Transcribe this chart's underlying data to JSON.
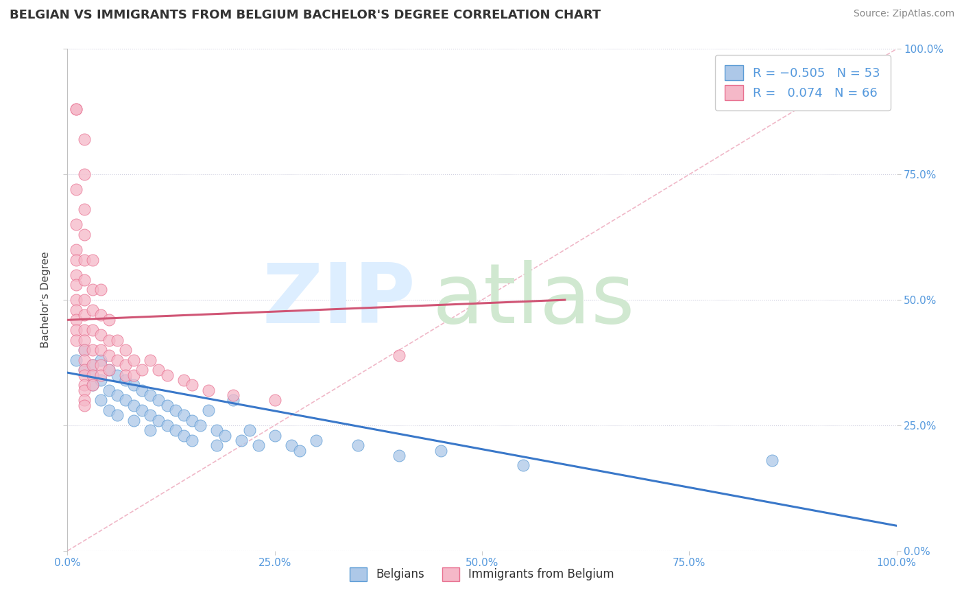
{
  "title": "BELGIAN VS IMMIGRANTS FROM BELGIUM BACHELOR'S DEGREE CORRELATION CHART",
  "source": "Source: ZipAtlas.com",
  "ylabel": "Bachelor's Degree",
  "xlim": [
    0,
    1
  ],
  "ylim": [
    0,
    1
  ],
  "ytick_labels": [
    "0.0%",
    "25.0%",
    "50.0%",
    "75.0%",
    "100.0%"
  ],
  "ytick_values": [
    0,
    0.25,
    0.5,
    0.75,
    1.0
  ],
  "blue_R": -0.505,
  "blue_N": 53,
  "pink_R": 0.074,
  "pink_N": 66,
  "blue_color": "#adc8e8",
  "blue_edge_color": "#5b9bd5",
  "blue_line_color": "#3a78c9",
  "pink_color": "#f5b8c8",
  "pink_edge_color": "#e87090",
  "pink_line_color": "#d05575",
  "diag_color": "#f0b8c8",
  "blue_scatter_x": [
    0.01,
    0.02,
    0.02,
    0.03,
    0.03,
    0.03,
    0.04,
    0.04,
    0.04,
    0.05,
    0.05,
    0.05,
    0.06,
    0.06,
    0.06,
    0.07,
    0.07,
    0.08,
    0.08,
    0.08,
    0.09,
    0.09,
    0.1,
    0.1,
    0.1,
    0.11,
    0.11,
    0.12,
    0.12,
    0.13,
    0.13,
    0.14,
    0.14,
    0.15,
    0.15,
    0.16,
    0.17,
    0.18,
    0.18,
    0.19,
    0.2,
    0.21,
    0.22,
    0.23,
    0.25,
    0.27,
    0.28,
    0.3,
    0.35,
    0.4,
    0.45,
    0.55,
    0.85
  ],
  "blue_scatter_y": [
    0.38,
    0.4,
    0.36,
    0.37,
    0.35,
    0.33,
    0.38,
    0.34,
    0.3,
    0.36,
    0.32,
    0.28,
    0.35,
    0.31,
    0.27,
    0.34,
    0.3,
    0.33,
    0.29,
    0.26,
    0.32,
    0.28,
    0.31,
    0.27,
    0.24,
    0.3,
    0.26,
    0.29,
    0.25,
    0.28,
    0.24,
    0.27,
    0.23,
    0.26,
    0.22,
    0.25,
    0.28,
    0.24,
    0.21,
    0.23,
    0.3,
    0.22,
    0.24,
    0.21,
    0.23,
    0.21,
    0.2,
    0.22,
    0.21,
    0.19,
    0.2,
    0.17,
    0.18
  ],
  "pink_scatter_x": [
    0.01,
    0.01,
    0.01,
    0.01,
    0.01,
    0.01,
    0.01,
    0.01,
    0.01,
    0.01,
    0.01,
    0.01,
    0.01,
    0.02,
    0.02,
    0.02,
    0.02,
    0.02,
    0.02,
    0.02,
    0.02,
    0.02,
    0.02,
    0.02,
    0.02,
    0.02,
    0.02,
    0.02,
    0.02,
    0.02,
    0.02,
    0.03,
    0.03,
    0.03,
    0.03,
    0.03,
    0.03,
    0.03,
    0.03,
    0.04,
    0.04,
    0.04,
    0.04,
    0.04,
    0.04,
    0.05,
    0.05,
    0.05,
    0.05,
    0.06,
    0.06,
    0.07,
    0.07,
    0.07,
    0.08,
    0.08,
    0.09,
    0.1,
    0.11,
    0.12,
    0.14,
    0.15,
    0.17,
    0.2,
    0.25,
    0.4
  ],
  "pink_scatter_y": [
    0.88,
    0.88,
    0.72,
    0.65,
    0.6,
    0.58,
    0.55,
    0.53,
    0.5,
    0.48,
    0.46,
    0.44,
    0.42,
    0.82,
    0.75,
    0.68,
    0.63,
    0.58,
    0.54,
    0.5,
    0.47,
    0.44,
    0.42,
    0.4,
    0.38,
    0.36,
    0.35,
    0.33,
    0.32,
    0.3,
    0.29,
    0.58,
    0.52,
    0.48,
    0.44,
    0.4,
    0.37,
    0.35,
    0.33,
    0.52,
    0.47,
    0.43,
    0.4,
    0.37,
    0.35,
    0.46,
    0.42,
    0.39,
    0.36,
    0.42,
    0.38,
    0.4,
    0.37,
    0.35,
    0.38,
    0.35,
    0.36,
    0.38,
    0.36,
    0.35,
    0.34,
    0.33,
    0.32,
    0.31,
    0.3,
    0.39
  ],
  "title_fontsize": 13,
  "axis_fontsize": 11,
  "tick_fontsize": 11,
  "source_fontsize": 10,
  "legend_fontsize": 13
}
